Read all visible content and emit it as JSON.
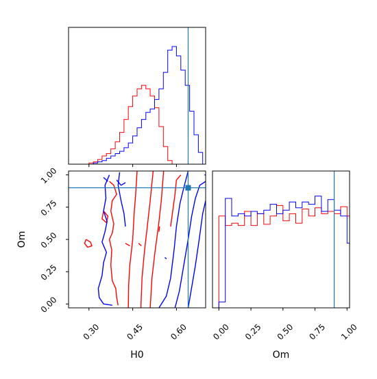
{
  "chart_data": {
    "type": "corner",
    "parameters": [
      "H0",
      "Om"
    ],
    "truth": {
      "H0": 0.64,
      "Om": 0.9
    },
    "colors": {
      "red": "#ff0000",
      "blue": "#0000ff",
      "truth": "#1f77b4"
    },
    "axes": {
      "H0": {
        "xlim": [
          0.23,
          0.7
        ],
        "ticks": [
          0.3,
          0.45,
          0.6
        ],
        "tick_labels": [
          "0.30",
          "0.45",
          "0.60"
        ],
        "xlabel": "H0"
      },
      "Om_y": {
        "ylim": [
          -0.03,
          1.03
        ],
        "ticks": [
          0.0,
          0.25,
          0.5,
          0.75,
          1.0
        ],
        "tick_labels": [
          "0.00",
          "0.25",
          "0.50",
          "0.75",
          "1.00"
        ],
        "ylabel": "Om"
      },
      "Om_x": {
        "xlim": [
          -0.05,
          1.02
        ],
        "ticks": [
          0.0,
          0.25,
          0.5,
          0.75,
          1.0
        ],
        "tick_labels": [
          "0.00",
          "0.25",
          "0.50",
          "0.75",
          "1.00"
        ],
        "xlabel": "Om"
      }
    },
    "hist_H0": {
      "ymax": 1.0,
      "bin_edges": [
        0.3,
        0.315,
        0.33,
        0.345,
        0.36,
        0.375,
        0.39,
        0.405,
        0.42,
        0.435,
        0.45,
        0.465,
        0.48,
        0.495,
        0.51,
        0.525,
        0.54,
        0.555,
        0.57,
        0.585,
        0.6,
        0.615,
        0.63,
        0.645,
        0.66,
        0.675,
        0.69
      ],
      "series": [
        {
          "color": "red",
          "values": [
            0.01,
            0.02,
            0.04,
            0.07,
            0.09,
            0.13,
            0.19,
            0.27,
            0.38,
            0.49,
            0.58,
            0.64,
            0.67,
            0.64,
            0.58,
            0.48,
            0.32,
            0.15,
            0.03,
            0,
            0,
            0,
            0,
            0,
            0,
            0
          ]
        },
        {
          "color": "blue",
          "values": [
            0,
            0.01,
            0.02,
            0.03,
            0.05,
            0.07,
            0.09,
            0.11,
            0.14,
            0.18,
            0.24,
            0.31,
            0.38,
            0.44,
            0.47,
            0.55,
            0.64,
            0.78,
            0.97,
            1.0,
            0.92,
            0.8,
            0.67,
            0.45,
            0.25,
            0.1
          ]
        }
      ]
    },
    "hist_Om": {
      "ymax": 1.0,
      "bin_edges": [
        -0.05,
        0.0,
        0.05,
        0.1,
        0.15,
        0.2,
        0.25,
        0.3,
        0.35,
        0.4,
        0.45,
        0.5,
        0.55,
        0.6,
        0.65,
        0.7,
        0.75,
        0.8,
        0.85,
        0.9,
        0.95,
        1.0,
        1.02
      ],
      "series": [
        {
          "color": "red",
          "values": [
            0.0,
            0.78,
            0.7,
            0.72,
            0.7,
            0.82,
            0.7,
            0.8,
            0.71,
            0.78,
            0.87,
            0.74,
            0.8,
            0.72,
            0.84,
            0.78,
            0.85,
            0.8,
            0.82,
            0.8,
            0.86,
            0.78,
            0.0
          ]
        },
        {
          "color": "blue",
          "values": [
            0.0,
            0.05,
            0.93,
            0.78,
            0.8,
            0.78,
            0.82,
            0.8,
            0.83,
            0.88,
            0.8,
            0.83,
            0.9,
            0.85,
            0.9,
            0.88,
            0.95,
            0.82,
            0.92,
            0.83,
            0.78,
            0.55,
            0.0
          ]
        }
      ]
    },
    "contours": [
      {
        "color": "red",
        "points": [
          [
            0.435,
            -0.03
          ],
          [
            0.436,
            0.15
          ],
          [
            0.44,
            0.3
          ],
          [
            0.45,
            0.5
          ],
          [
            0.455,
            0.7
          ],
          [
            0.46,
            0.85
          ],
          [
            0.465,
            1.03
          ]
        ]
      },
      {
        "color": "red",
        "points": [
          [
            0.478,
            -0.03
          ],
          [
            0.482,
            0.2
          ],
          [
            0.49,
            0.4
          ],
          [
            0.5,
            0.6
          ],
          [
            0.51,
            0.8
          ],
          [
            0.52,
            1.03
          ]
        ]
      },
      {
        "color": "red",
        "points": [
          [
            0.51,
            -0.03
          ],
          [
            0.516,
            0.2
          ],
          [
            0.526,
            0.4
          ],
          [
            0.538,
            0.6
          ],
          [
            0.548,
            0.8
          ],
          [
            0.556,
            1.03
          ]
        ]
      },
      {
        "color": "red",
        "points": [
          [
            0.37,
            0.95
          ],
          [
            0.385,
            0.92
          ],
          [
            0.395,
            0.85
          ],
          [
            0.38,
            0.8
          ],
          [
            0.375,
            0.72
          ],
          [
            0.385,
            0.62
          ],
          [
            0.38,
            0.55
          ],
          [
            0.37,
            0.5
          ],
          [
            0.378,
            0.42
          ],
          [
            0.375,
            0.3
          ],
          [
            0.38,
            0.18
          ],
          [
            0.392,
            0.12
          ],
          [
            0.395,
            0.05
          ],
          [
            0.4,
            -0.01
          ]
        ]
      },
      {
        "color": "red",
        "points": [
          [
            0.35,
            0.72
          ],
          [
            0.365,
            0.68
          ],
          [
            0.36,
            0.63
          ],
          [
            0.345,
            0.66
          ],
          [
            0.35,
            0.72
          ]
        ]
      },
      {
        "color": "red",
        "points": [
          [
            0.29,
            0.5
          ],
          [
            0.305,
            0.48
          ],
          [
            0.31,
            0.45
          ],
          [
            0.295,
            0.44
          ],
          [
            0.285,
            0.47
          ],
          [
            0.29,
            0.5
          ]
        ]
      },
      {
        "color": "red",
        "points": [
          [
            0.425,
            0.47
          ],
          [
            0.44,
            0.45
          ]
        ]
      },
      {
        "color": "red",
        "points": [
          [
            0.47,
            0.47
          ],
          [
            0.48,
            0.45
          ]
        ]
      },
      {
        "color": "red",
        "points": [
          [
            0.58,
            0.6
          ],
          [
            0.595,
            0.85
          ],
          [
            0.6,
            0.96
          ],
          [
            0.615,
            1.0
          ]
        ]
      },
      {
        "color": "red",
        "points": [
          [
            0.54,
            0.56
          ],
          [
            0.542,
            0.6
          ]
        ]
      },
      {
        "color": "blue",
        "points": [
          [
            0.54,
            -0.03
          ],
          [
            0.565,
            0.06
          ],
          [
            0.58,
            0.2
          ],
          [
            0.592,
            0.42
          ],
          [
            0.6,
            0.6
          ],
          [
            0.612,
            0.78
          ],
          [
            0.625,
            0.9
          ],
          [
            0.64,
            1.03
          ]
        ]
      },
      {
        "color": "blue",
        "points": [
          [
            0.595,
            -0.03
          ],
          [
            0.61,
            0.1
          ],
          [
            0.625,
            0.3
          ],
          [
            0.64,
            0.5
          ],
          [
            0.652,
            0.68
          ],
          [
            0.665,
            0.82
          ],
          [
            0.68,
            0.92
          ],
          [
            0.7,
            0.95
          ]
        ]
      },
      {
        "color": "blue",
        "points": [
          [
            0.64,
            -0.03
          ],
          [
            0.65,
            0.1
          ],
          [
            0.665,
            0.3
          ],
          [
            0.678,
            0.5
          ],
          [
            0.69,
            0.7
          ],
          [
            0.7,
            0.8
          ]
        ]
      },
      {
        "color": "blue",
        "points": [
          [
            0.37,
            1.0
          ],
          [
            0.355,
            0.92
          ],
          [
            0.358,
            0.82
          ],
          [
            0.35,
            0.72
          ],
          [
            0.362,
            0.64
          ],
          [
            0.355,
            0.56
          ],
          [
            0.345,
            0.48
          ],
          [
            0.36,
            0.4
          ],
          [
            0.35,
            0.32
          ],
          [
            0.345,
            0.22
          ],
          [
            0.332,
            0.12
          ],
          [
            0.335,
            0.05
          ],
          [
            0.35,
            0.0
          ],
          [
            0.38,
            -0.01
          ]
        ]
      },
      {
        "color": "blue",
        "points": [
          [
            0.35,
            0.98
          ],
          [
            0.365,
            0.95
          ]
        ]
      },
      {
        "color": "blue",
        "points": [
          [
            0.405,
            1.02
          ],
          [
            0.4,
            0.92
          ],
          [
            0.41,
            0.8
          ],
          [
            0.42,
            0.7
          ],
          [
            0.425,
            0.6
          ]
        ]
      },
      {
        "color": "blue",
        "points": [
          [
            0.395,
            0.96
          ],
          [
            0.41,
            0.92
          ],
          [
            0.425,
            0.94
          ]
        ]
      },
      {
        "color": "blue",
        "points": [
          [
            0.56,
            0.36
          ],
          [
            0.566,
            0.35
          ]
        ]
      },
      {
        "color": "blue",
        "points": [
          [
            0.696,
            1.0
          ],
          [
            0.7,
            1.0
          ]
        ]
      }
    ]
  }
}
